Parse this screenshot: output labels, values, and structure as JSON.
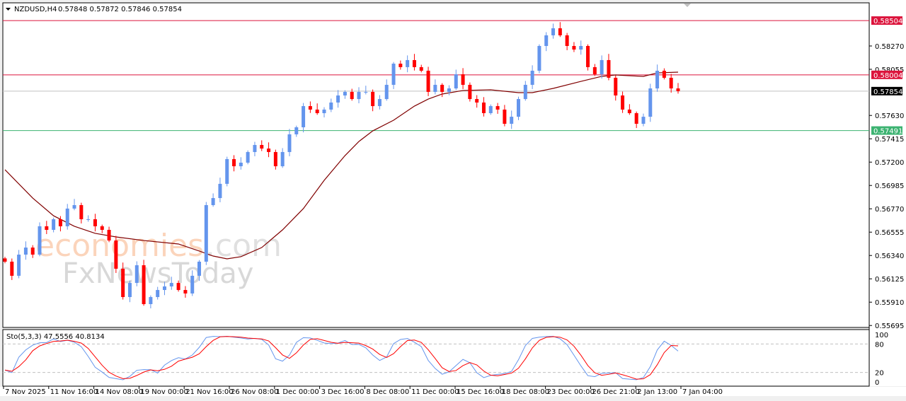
{
  "header": {
    "symbol": "NZDUSD,H4",
    "ohlc": "0.57848 0.57872 0.57846 0.57854"
  },
  "watermark": {
    "brand": "economies",
    "domain": ".com",
    "secondary": "FxNewsToday"
  },
  "colors": {
    "bull": "#6495ED",
    "bear": "#FF0000",
    "ma": "#800000",
    "resistance": "#DC143C",
    "support": "#3CB371",
    "current": "#000000",
    "sto_main": "#6495ED",
    "sto_signal": "#FF0000"
  },
  "chart_data": {
    "type": "candlestick",
    "symbol": "NZDUSD",
    "timeframe": "H4",
    "ylim": [
      0.55695,
      0.5856
    ],
    "y_ticks": [
      "0.58270",
      "0.58055",
      "0.57630",
      "0.57415",
      "0.57200",
      "0.56985",
      "0.56770",
      "0.56555",
      "0.56340",
      "0.56125",
      "0.55910",
      "0.55695"
    ],
    "x_ticks": [
      "7 Nov 2025",
      "11 Nov 16:00",
      "14 Nov 08:00",
      "19 Nov 00:00",
      "21 Nov 16:00",
      "26 Nov 08:00",
      "1 Dec 00:00",
      "3 Dec 16:00",
      "8 Dec 08:00",
      "11 Dec 00:00",
      "15 Dec 16:00",
      "18 Dec 08:00",
      "23 Dec 00:00",
      "26 Dec 21:00",
      "2 Jan 13:00",
      "7 Jan 04:00"
    ],
    "closes": [
      0.56283,
      0.56153,
      0.56348,
      0.56413,
      0.56348,
      0.56609,
      0.56576,
      0.56674,
      0.56609,
      0.56772,
      0.56804,
      0.56674,
      0.56674,
      0.56609,
      0.56576,
      0.56478,
      0.56218,
      0.55957,
      0.56087,
      0.5625,
      0.55892,
      0.55957,
      0.56022,
      0.56055,
      0.56087,
      0.56022,
      0.5599,
      0.56153,
      0.56283,
      0.56804,
      0.56869,
      0.57,
      0.57228,
      0.57162,
      0.57195,
      0.57293,
      0.57358,
      0.57325,
      0.57293,
      0.57162,
      0.57293,
      0.57456,
      0.57521,
      0.57716,
      0.57684,
      0.57651,
      0.57684,
      0.57749,
      0.57814,
      0.57847,
      0.57781,
      0.57847,
      0.57847,
      0.57716,
      0.57781,
      0.57912,
      0.58107,
      0.58075,
      0.5814,
      0.58075,
      0.58042,
      0.57847,
      0.57912,
      0.57847,
      0.57879,
      0.58009,
      0.57912,
      0.57781,
      0.57749,
      0.57651,
      0.57716,
      0.57684,
      0.57553,
      0.57618,
      0.57781,
      0.57912,
      0.58042,
      0.5827,
      0.58368,
      0.58433,
      0.58368,
      0.5827,
      0.58237,
      0.5827,
      0.58075,
      0.58009,
      0.5814,
      0.57977,
      0.57814,
      0.57684,
      0.57651,
      0.57553,
      0.57618,
      0.57879,
      0.58042,
      0.57977,
      0.57879,
      0.57854
    ],
    "moving_average": [
      [
        0,
        0.5713
      ],
      [
        4,
        0.56869
      ],
      [
        7,
        0.56706
      ],
      [
        10,
        0.56609
      ],
      [
        13,
        0.56544
      ],
      [
        16,
        0.56511
      ],
      [
        20,
        0.56478
      ],
      [
        25,
        0.56446
      ],
      [
        28,
        0.56381
      ],
      [
        30,
        0.56335
      ],
      [
        32,
        0.56309
      ],
      [
        34,
        0.56329
      ],
      [
        37,
        0.56413
      ],
      [
        40,
        0.56576
      ],
      [
        43,
        0.56772
      ],
      [
        46,
        0.57032
      ],
      [
        49,
        0.5726
      ],
      [
        51,
        0.5739
      ],
      [
        53,
        0.57488
      ],
      [
        56,
        0.57586
      ],
      [
        59,
        0.57716
      ],
      [
        61,
        0.57781
      ],
      [
        63,
        0.57827
      ],
      [
        66,
        0.5786
      ],
      [
        70,
        0.57866
      ],
      [
        74,
        0.5784
      ],
      [
        76,
        0.5784
      ],
      [
        79,
        0.57879
      ],
      [
        83,
        0.57944
      ],
      [
        86,
        0.5799
      ],
      [
        88,
        0.58003
      ],
      [
        90,
        0.57996
      ],
      [
        92,
        0.5799
      ],
      [
        94,
        0.58022
      ],
      [
        97,
        0.58029
      ]
    ],
    "levels": [
      {
        "value": "0.58504",
        "kind": "resistance"
      },
      {
        "value": "0.58004",
        "kind": "resistance"
      },
      {
        "value": "0.57854",
        "kind": "current"
      },
      {
        "value": "0.57491",
        "kind": "support"
      }
    ],
    "stochastic": {
      "label": "Sto(5,3,3) 47.5556 40.8134",
      "params": [
        5,
        3,
        3
      ],
      "levels": [
        "100",
        "80",
        "20",
        "0"
      ],
      "ylim": [
        0,
        100
      ]
    }
  }
}
